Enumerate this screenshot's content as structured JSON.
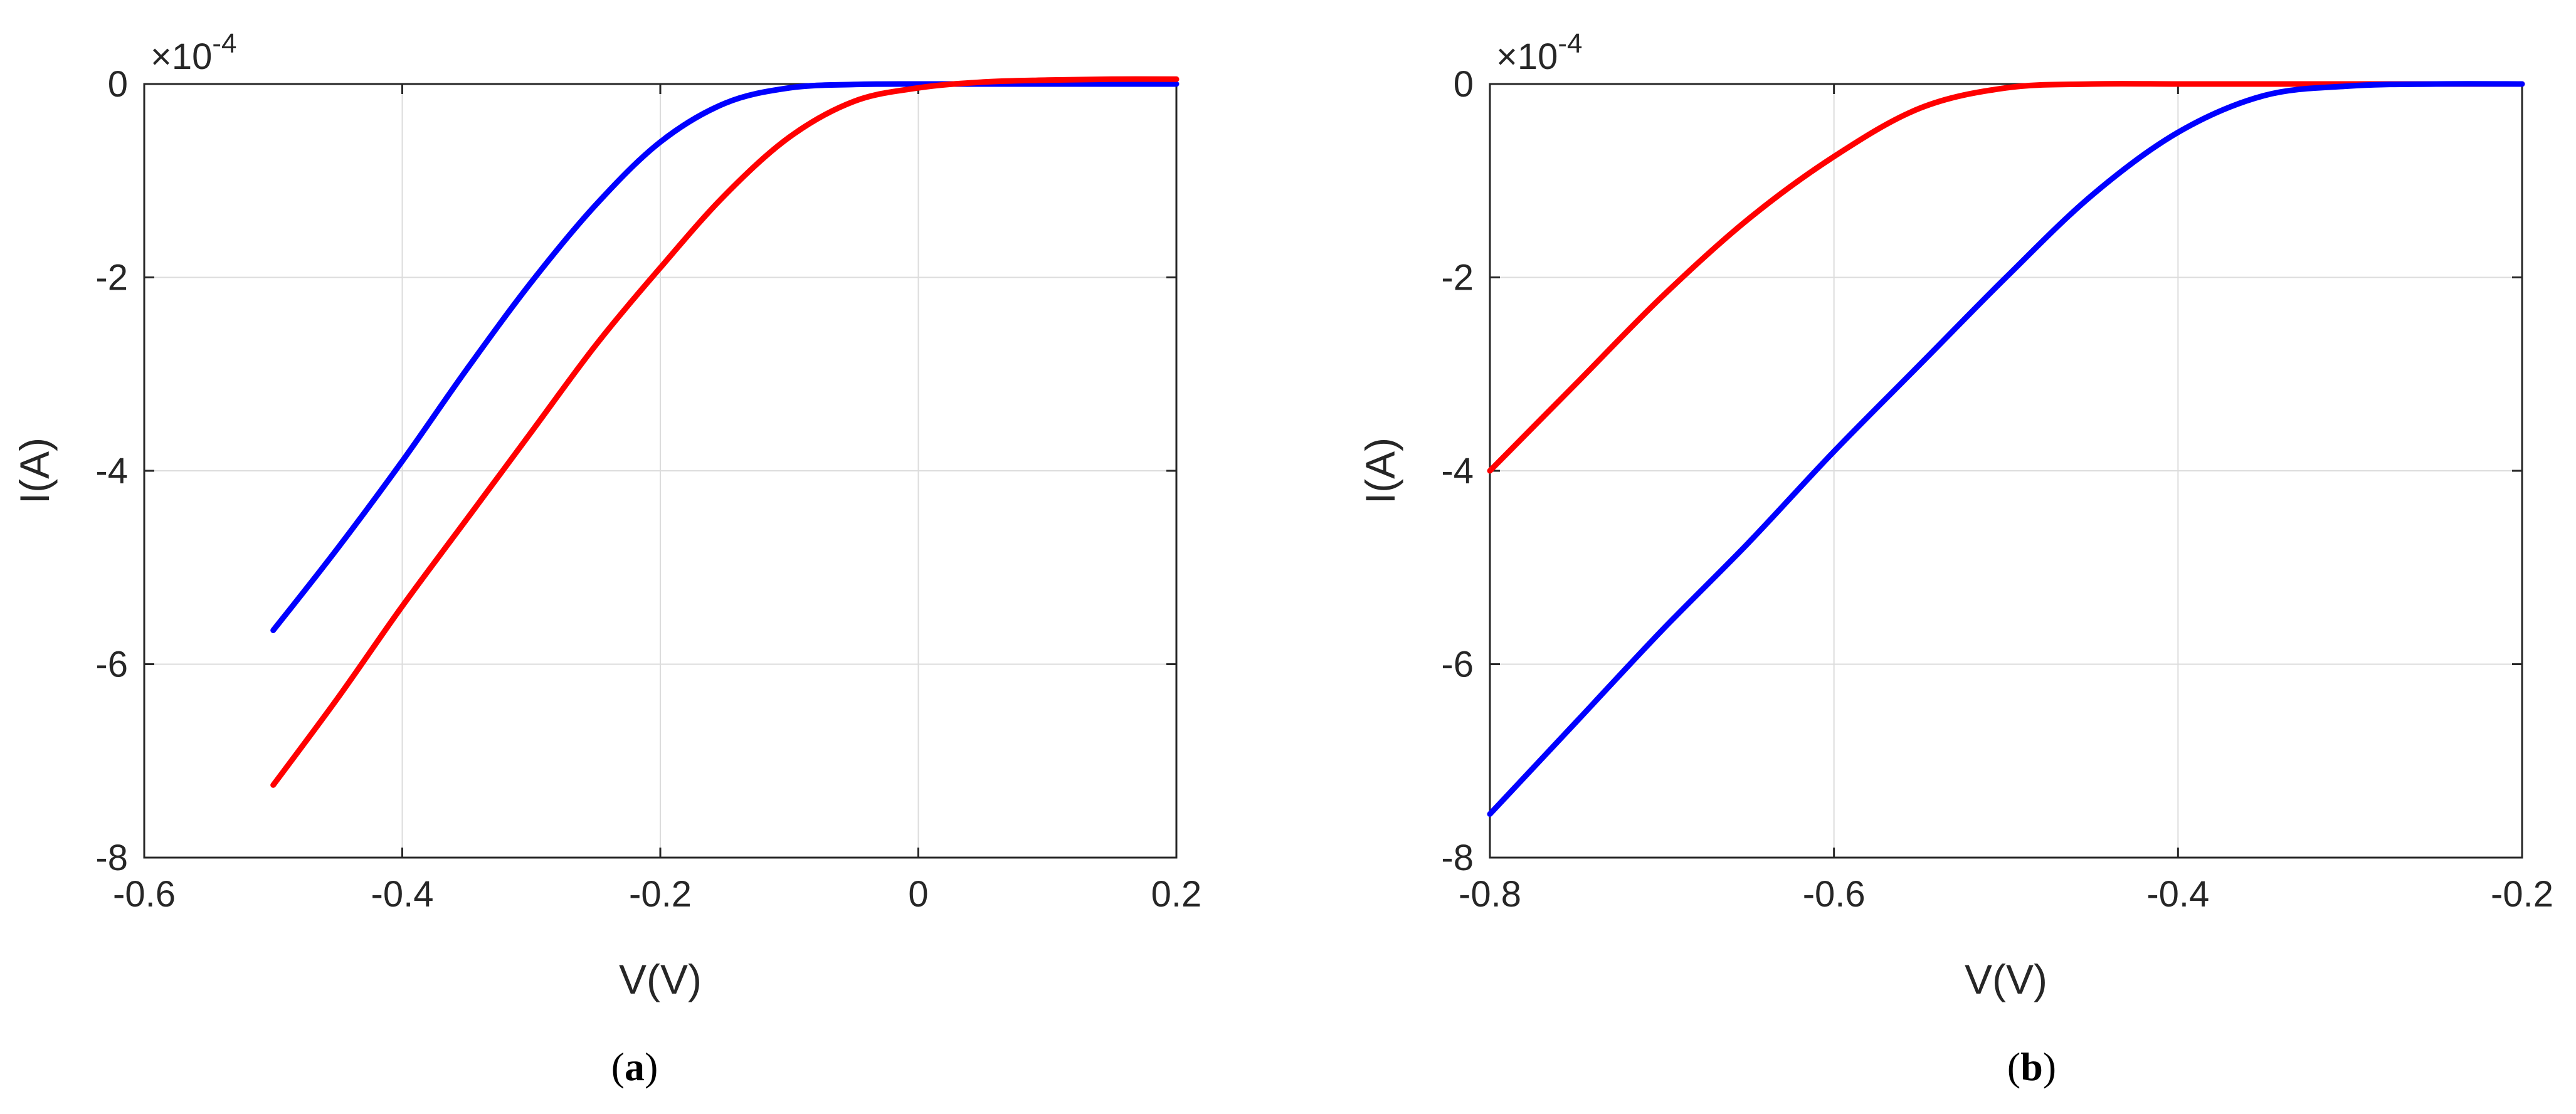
{
  "chart_data": [
    {
      "type": "line",
      "panel_label": "a",
      "xlabel": "V(V)",
      "ylabel": "I(A)",
      "y_exponent": "-4",
      "xlim": [
        -0.6,
        0.2
      ],
      "ylim": [
        -8,
        0
      ],
      "xticks": [
        "-0.6",
        "-0.4",
        "-0.2",
        "0",
        "0.2"
      ],
      "yticks": [
        "0",
        "-2",
        "-4",
        "-6",
        "-8"
      ],
      "grid": true,
      "legend": "none",
      "series": [
        {
          "color": "#0000ff",
          "x": [
            -0.5,
            -0.45,
            -0.4,
            -0.35,
            -0.3,
            -0.25,
            -0.2,
            -0.15,
            -0.1,
            -0.05,
            0.0,
            0.05,
            0.1,
            0.15,
            0.2
          ],
          "y": [
            -5.65,
            -4.8,
            -3.9,
            -2.95,
            -2.05,
            -1.25,
            -0.6,
            -0.2,
            -0.04,
            -0.005,
            0.0,
            0.0,
            0.0,
            0.0,
            0.0
          ]
        },
        {
          "color": "#ff0000",
          "x": [
            -0.5,
            -0.45,
            -0.4,
            -0.35,
            -0.3,
            -0.25,
            -0.2,
            -0.15,
            -0.1,
            -0.05,
            0.0,
            0.05,
            0.1,
            0.15,
            0.2
          ],
          "y": [
            -7.25,
            -6.35,
            -5.4,
            -4.5,
            -3.6,
            -2.7,
            -1.9,
            -1.15,
            -0.55,
            -0.18,
            -0.04,
            0.02,
            0.04,
            0.05,
            0.05
          ]
        }
      ]
    },
    {
      "type": "line",
      "panel_label": "b",
      "xlabel": "V(V)",
      "ylabel": "I(A)",
      "y_exponent": "-4",
      "xlim": [
        -0.8,
        -0.2
      ],
      "ylim": [
        -8,
        0
      ],
      "xticks": [
        "-0.8",
        "-0.6",
        "-0.4",
        "-0.2"
      ],
      "yticks": [
        "0",
        "-2",
        "-4",
        "-6",
        "-8"
      ],
      "grid": true,
      "legend": "none",
      "series": [
        {
          "color": "#ff0000",
          "x": [
            -0.8,
            -0.75,
            -0.7,
            -0.65,
            -0.6,
            -0.55,
            -0.5,
            -0.45,
            -0.4,
            -0.35,
            -0.3,
            -0.25,
            -0.2
          ],
          "y": [
            -4.0,
            -3.1,
            -2.2,
            -1.4,
            -0.75,
            -0.25,
            -0.04,
            0.0,
            0.0,
            0.0,
            0.0,
            0.0,
            0.0
          ]
        },
        {
          "color": "#0000ff",
          "x": [
            -0.8,
            -0.75,
            -0.7,
            -0.65,
            -0.6,
            -0.55,
            -0.5,
            -0.45,
            -0.4,
            -0.35,
            -0.3,
            -0.25,
            -0.2
          ],
          "y": [
            -7.55,
            -6.6,
            -5.65,
            -4.75,
            -3.8,
            -2.9,
            -2.0,
            -1.15,
            -0.5,
            -0.12,
            -0.02,
            0.0,
            0.0
          ]
        }
      ]
    }
  ]
}
